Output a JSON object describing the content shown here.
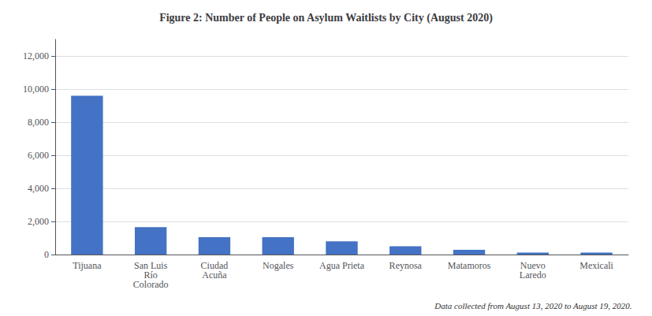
{
  "chart_data": {
    "type": "bar",
    "title": "Figure 2: Number of People on Asylum Waitlists by City (August 2020)",
    "categories": [
      "Tijuana",
      "San Luis\nRío\nColorado",
      "Ciudad\nAcuña",
      "Nogales",
      "Agua Prieta",
      "Reynosa",
      "Matamoros",
      "Nuevo\nLaredo",
      "Mexicali"
    ],
    "values": [
      9600,
      1650,
      1050,
      1050,
      800,
      500,
      280,
      120,
      120
    ],
    "color": "#4472C4",
    "ylim": [
      0,
      13000
    ],
    "yticks": [
      0,
      {
        "value": 2000,
        "label": "2,000"
      },
      {
        "value": 4000,
        "label": "4,000"
      },
      {
        "value": 6000,
        "label": "6,000"
      },
      {
        "value": 8000,
        "label": "8,000"
      },
      {
        "value": 10000,
        "label": "10,000"
      },
      {
        "value": 12000,
        "label": "12,000"
      }
    ],
    "grid": true,
    "annotation": "Data collected from August 13, 2020 to August 19, 2020."
  }
}
